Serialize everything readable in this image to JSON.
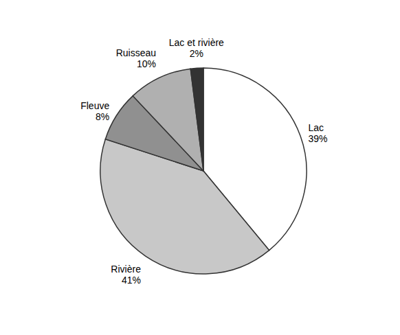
{
  "chart_data": {
    "type": "pie",
    "categories": [
      "Lac",
      "Rivière",
      "Fleuve",
      "Ruisseau",
      "Lac et rivière"
    ],
    "values": [
      39,
      41,
      8,
      10,
      2
    ],
    "value_labels": [
      "39%",
      "41%",
      "8%",
      "10%",
      "2%"
    ],
    "colors": [
      "#ffffff",
      "#c8c8c8",
      "#909090",
      "#b0b0b0",
      "#333333"
    ]
  }
}
